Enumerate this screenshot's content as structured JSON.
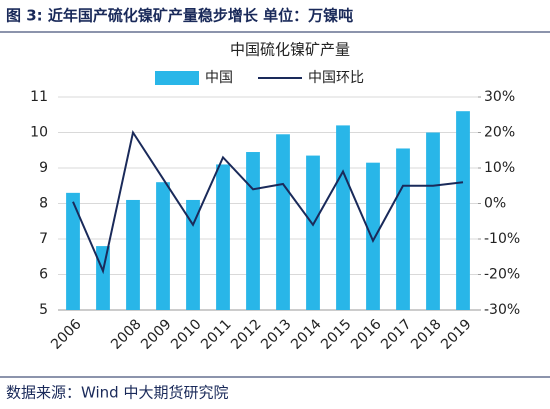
{
  "header": "图 3:  近年国产硫化镍矿产量稳步增长    单位：万镍吨",
  "footer": "数据来源：Wind  中大期货研究院",
  "chart_data": {
    "type": "bar",
    "title": "中国硫化镍矿产量",
    "categories": [
      "2006",
      null,
      "2008",
      "2009",
      "2010",
      "2011",
      "2012",
      "2013",
      "2014",
      "2015",
      "2016",
      "2017",
      "2018",
      "2019"
    ],
    "series": [
      {
        "name": "中国",
        "type": "bar",
        "color": "#29b6e8",
        "values": [
          8.3,
          6.8,
          8.1,
          8.6,
          8.1,
          9.1,
          9.45,
          9.95,
          9.35,
          10.2,
          9.15,
          9.55,
          10.0,
          10.6
        ]
      },
      {
        "name": "中国环比",
        "type": "line",
        "axis": "y2",
        "color": "#1a2a5a",
        "values": [
          0.5,
          -19,
          20,
          7,
          -6,
          13,
          4,
          5.5,
          -6,
          9,
          -10.5,
          5,
          5,
          6
        ]
      }
    ],
    "ylim": [
      5,
      11
    ],
    "yticks": [
      5,
      6,
      7,
      8,
      9,
      10,
      11
    ],
    "y2lim": [
      -30,
      30
    ],
    "y2ticks": [
      {
        "value": -30,
        "label": "-30%"
      },
      {
        "value": -20,
        "label": "-20%"
      },
      {
        "value": -10,
        "label": "-10%"
      },
      {
        "value": 0,
        "label": "0%"
      },
      {
        "value": 10,
        "label": "10%"
      },
      {
        "value": 20,
        "label": "20%"
      },
      {
        "value": 30,
        "label": "30%"
      }
    ],
    "grid": true
  }
}
